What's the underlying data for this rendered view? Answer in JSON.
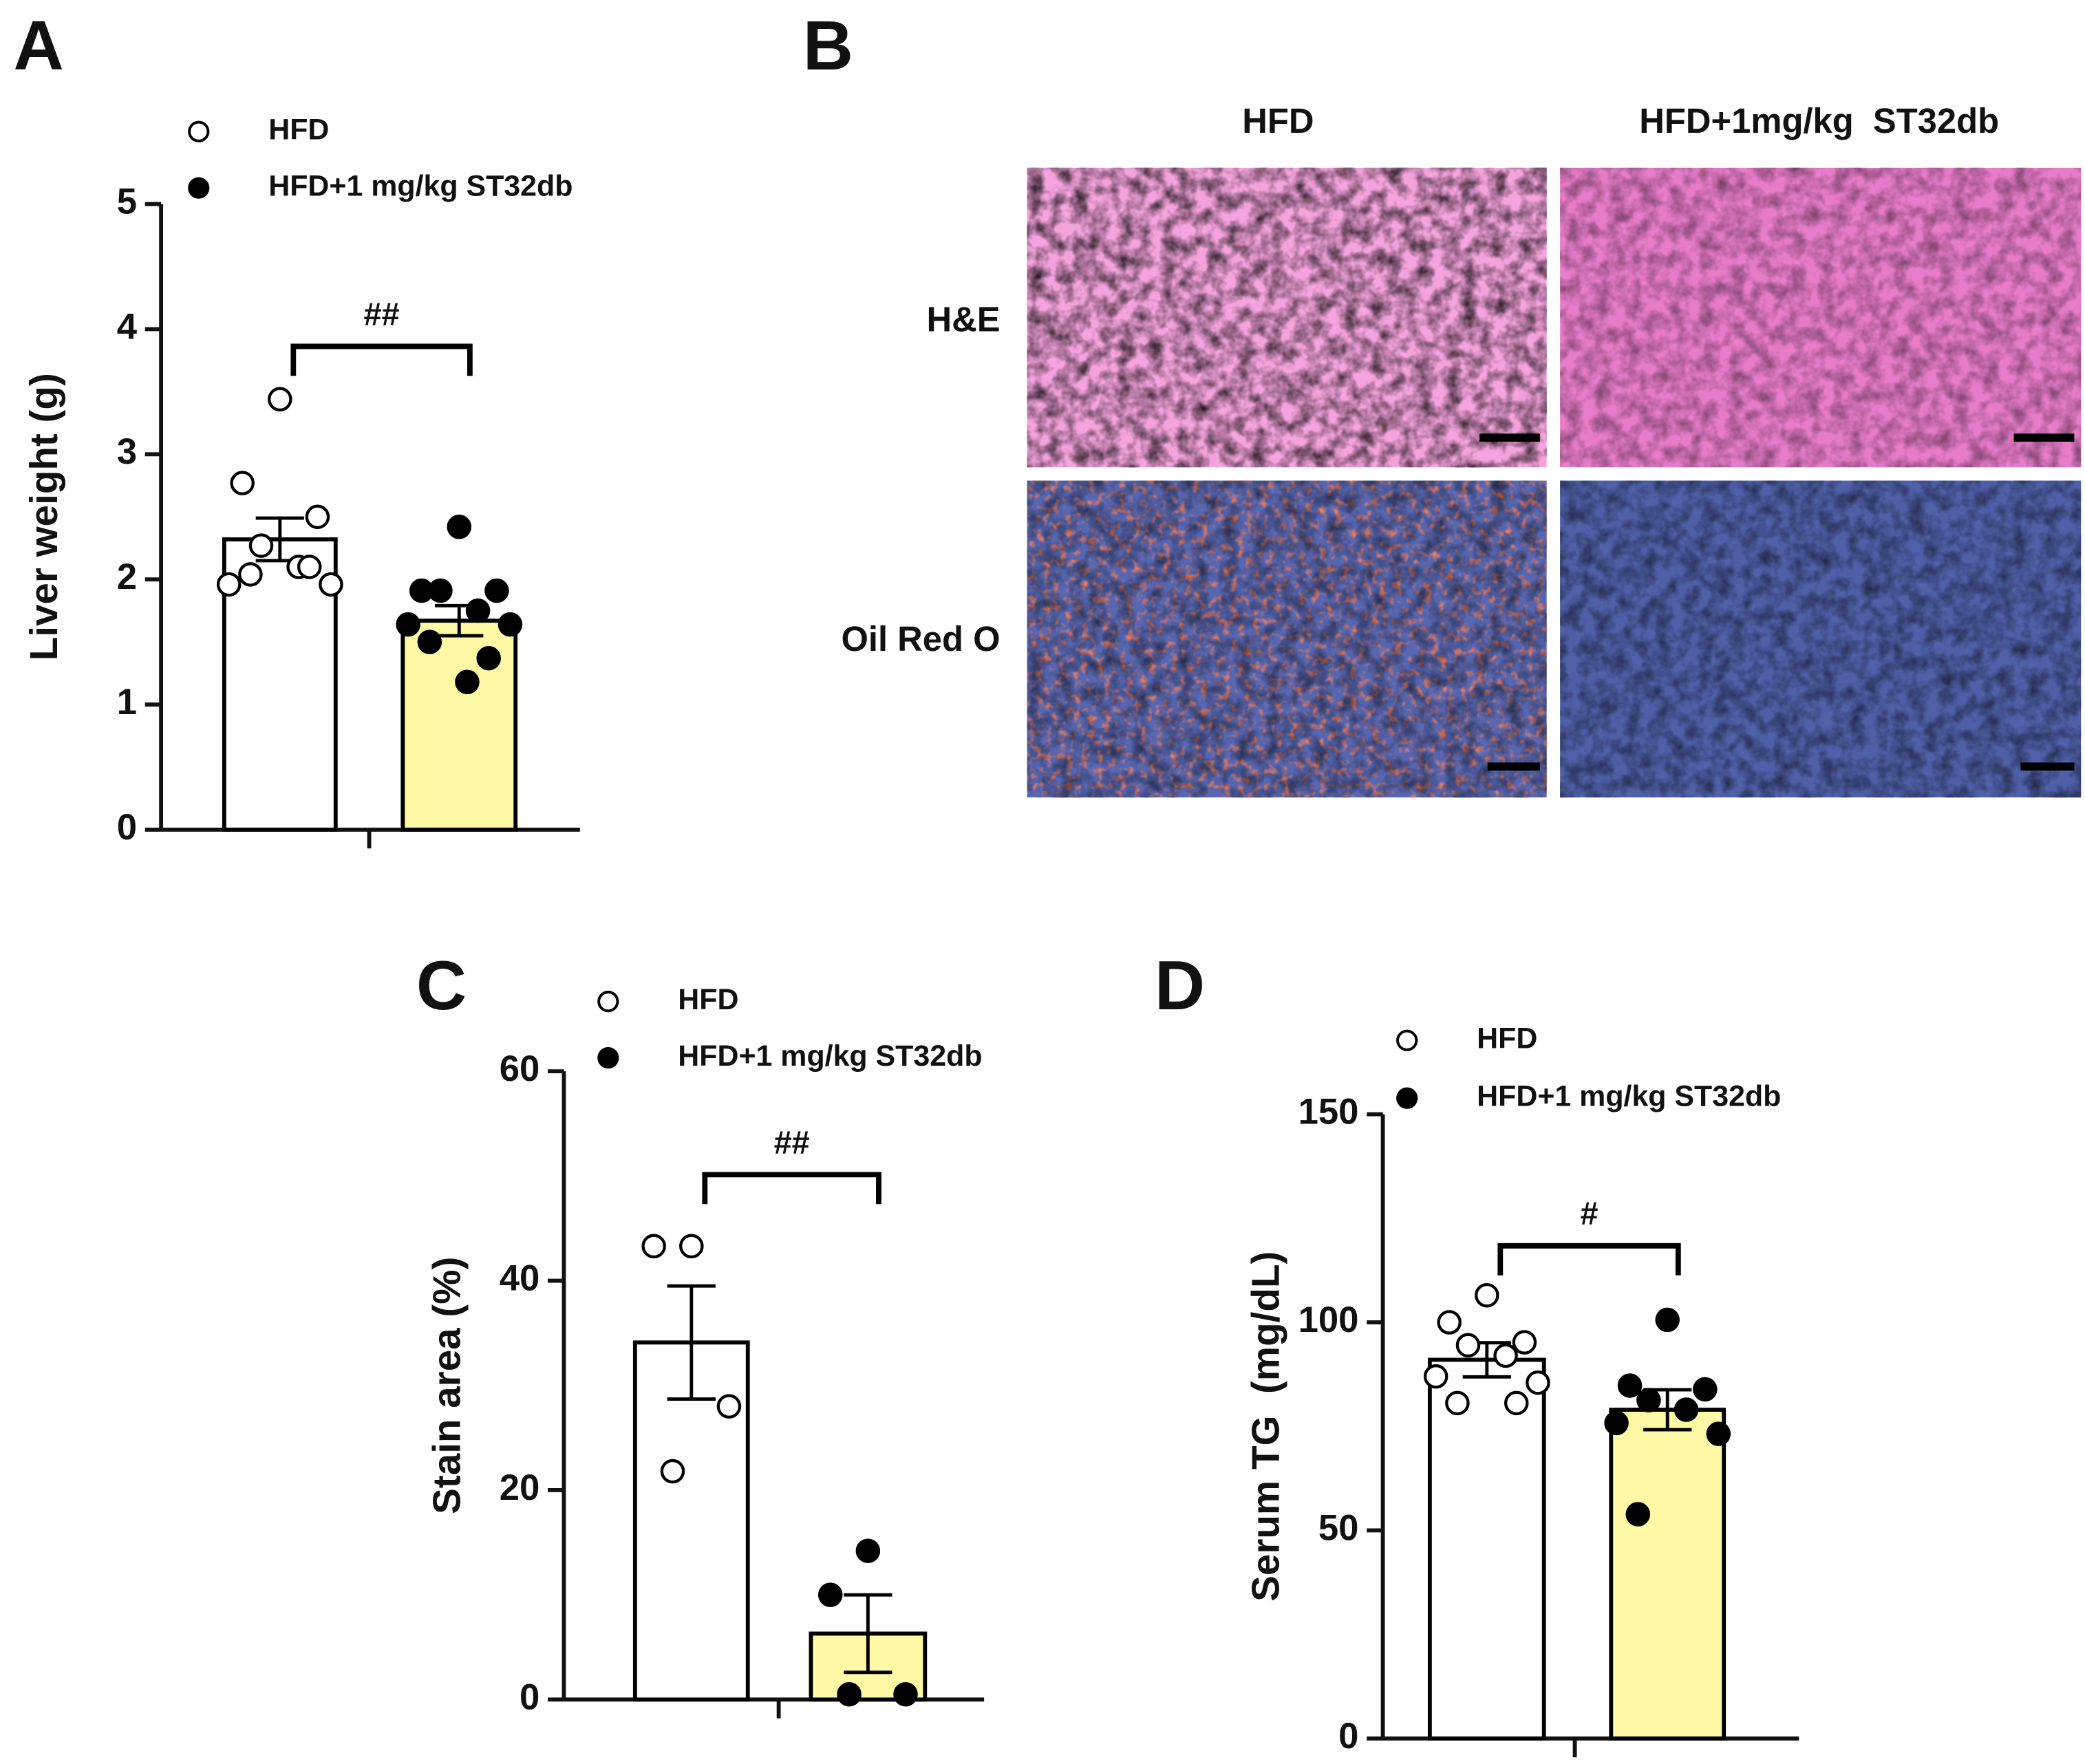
{
  "chart_data": [
    {
      "type": "bar",
      "panel": "A",
      "ylabel": "Liver weight (g)",
      "ylim": [
        0,
        5
      ],
      "yticks": [
        0,
        1,
        2,
        3,
        4,
        5
      ],
      "significance": "##",
      "series": [
        {
          "name": "HFD",
          "color": "#ffffff",
          "marker": "open",
          "values": [
            2.32
          ],
          "error": [
            0.17
          ],
          "points": [
            3.44,
            2.77,
            2.5,
            2.27,
            2.1,
            1.96,
            1.96,
            2.04,
            2.1
          ]
        },
        {
          "name": "HFD+1 mg/kg ST32db",
          "color": "#fff9a6",
          "marker": "filled",
          "values": [
            1.67
          ],
          "error": [
            0.12
          ],
          "points": [
            2.42,
            1.91,
            1.91,
            1.91,
            1.75,
            1.64,
            1.64,
            1.5,
            1.37,
            1.18
          ]
        }
      ]
    },
    {
      "type": "bar",
      "panel": "C",
      "ylabel": "Stain area (%)",
      "ylim": [
        0,
        60
      ],
      "yticks": [
        0,
        20,
        40,
        60
      ],
      "significance": "##",
      "series": [
        {
          "name": "HFD",
          "color": "#ffffff",
          "marker": "open",
          "values": [
            34.1
          ],
          "error": [
            5.4
          ],
          "points": [
            43.3,
            43.3,
            28.0,
            21.8
          ]
        },
        {
          "name": "HFD+1 mg/kg ST32db",
          "color": "#fff9a6",
          "marker": "filled",
          "values": [
            6.3
          ],
          "error": [
            3.7
          ],
          "points": [
            14.2,
            10.0,
            0.5,
            0.5
          ]
        }
      ]
    },
    {
      "type": "bar",
      "panel": "D",
      "ylabel": "Serum TG  (mg/dL)",
      "ylim": [
        0,
        150
      ],
      "yticks": [
        0,
        50,
        100,
        150
      ],
      "significance": "#",
      "series": [
        {
          "name": "HFD",
          "color": "#ffffff",
          "marker": "open",
          "values": [
            91
          ],
          "error": [
            4.1
          ],
          "points": [
            106.5,
            100,
            95.2,
            94.5,
            92,
            87,
            85.5,
            80.6,
            80.6
          ]
        },
        {
          "name": "HFD+1 mg/kg ST32db",
          "color": "#fff9a6",
          "marker": "filled",
          "values": [
            79
          ],
          "error": [
            4.8
          ],
          "points": [
            100.6,
            84.8,
            83.9,
            81.3,
            79,
            75.8,
            73.2,
            53.9
          ]
        }
      ]
    }
  ],
  "images": {
    "panel": "B",
    "columns": [
      "HFD",
      "HFD+1mg/kg  ST32db"
    ],
    "rows": [
      "H&E",
      "Oil Red O"
    ]
  }
}
